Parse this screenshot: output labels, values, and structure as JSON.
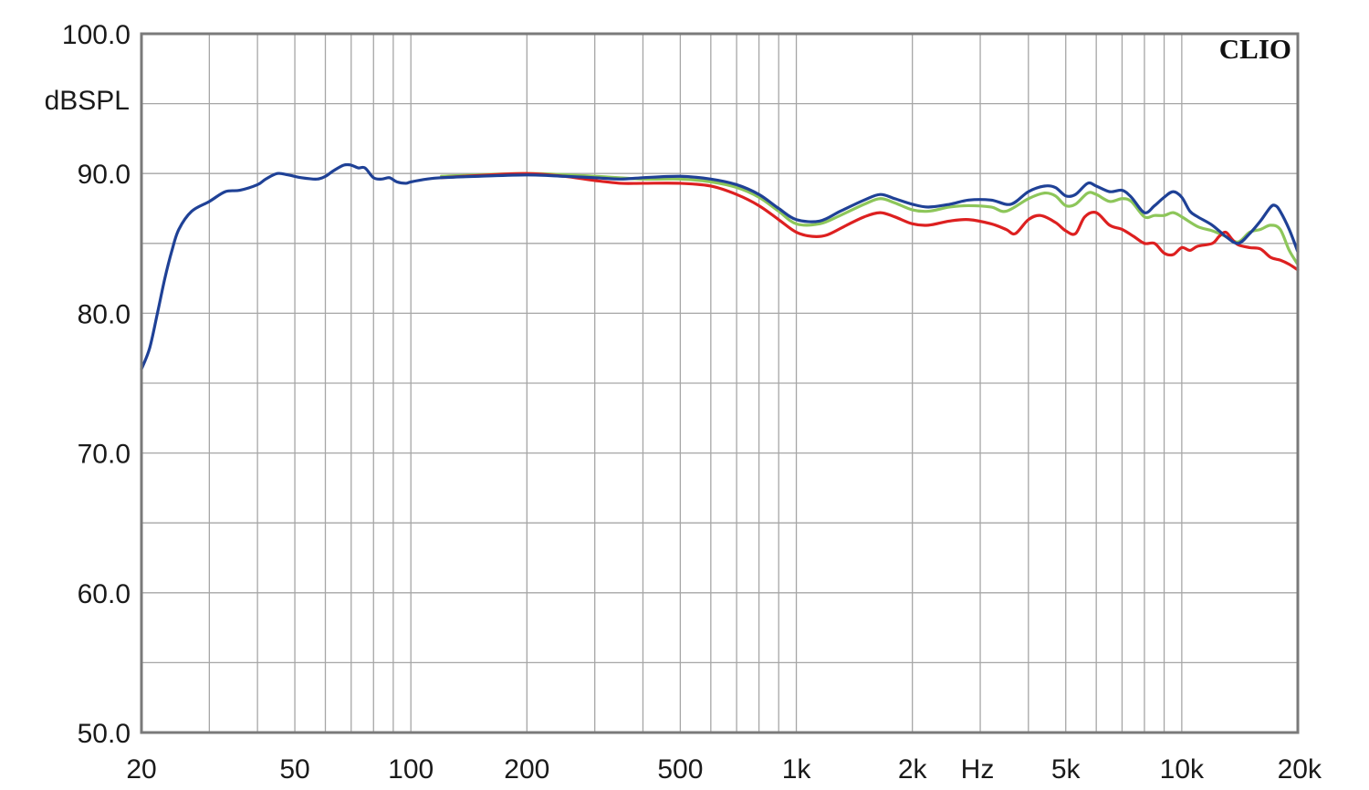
{
  "chart_data": {
    "type": "line",
    "brand": "CLIO",
    "ylabel": "dBSPL",
    "xunit": "Hz",
    "xscale": "log",
    "xlim": [
      20,
      20000
    ],
    "ylim": [
      50,
      100
    ],
    "grid": true,
    "x_ticks": [
      {
        "value": 20,
        "label": "20"
      },
      {
        "value": 50,
        "label": "50"
      },
      {
        "value": 100,
        "label": "100"
      },
      {
        "value": 200,
        "label": "200"
      },
      {
        "value": 500,
        "label": "500"
      },
      {
        "value": 1000,
        "label": "1k"
      },
      {
        "value": 2000,
        "label": "2k"
      },
      {
        "value": 5000,
        "label": "5k"
      },
      {
        "value": 10000,
        "label": "10k"
      },
      {
        "value": 20000,
        "label": "20k"
      }
    ],
    "y_ticks": [
      {
        "value": 100,
        "label": "100.0"
      },
      {
        "value": 90,
        "label": "90.0"
      },
      {
        "value": 80,
        "label": "80.0"
      },
      {
        "value": 70,
        "label": "70.0"
      },
      {
        "value": 60,
        "label": "60.0"
      },
      {
        "value": 50,
        "label": "50.0"
      }
    ],
    "series": [
      {
        "color": "#2a9b1c",
        "stroke": "#8dc65a",
        "points": [
          [
            120,
            89.8
          ],
          [
            200,
            90.0
          ],
          [
            300,
            89.8
          ],
          [
            400,
            89.6
          ],
          [
            500,
            89.6
          ],
          [
            600,
            89.4
          ],
          [
            700,
            89.0
          ],
          [
            800,
            88.3
          ],
          [
            900,
            87.3
          ],
          [
            1000,
            86.4
          ],
          [
            1150,
            86.4
          ],
          [
            1300,
            87.0
          ],
          [
            1500,
            87.8
          ],
          [
            1650,
            88.2
          ],
          [
            1800,
            87.9
          ],
          [
            2000,
            87.4
          ],
          [
            2200,
            87.3
          ],
          [
            2500,
            87.6
          ],
          [
            2800,
            87.7
          ],
          [
            3200,
            87.6
          ],
          [
            3500,
            87.3
          ],
          [
            4000,
            88.2
          ],
          [
            4400,
            88.6
          ],
          [
            4700,
            88.4
          ],
          [
            5000,
            87.7
          ],
          [
            5300,
            87.8
          ],
          [
            5700,
            88.6
          ],
          [
            6000,
            88.5
          ],
          [
            6500,
            88.0
          ],
          [
            7000,
            88.2
          ],
          [
            7400,
            88.0
          ],
          [
            8000,
            86.9
          ],
          [
            8500,
            87.0
          ],
          [
            9000,
            87.0
          ],
          [
            9500,
            87.2
          ],
          [
            10000,
            86.9
          ],
          [
            11000,
            86.2
          ],
          [
            12000,
            85.9
          ],
          [
            13000,
            85.5
          ],
          [
            14000,
            85.1
          ],
          [
            15000,
            85.8
          ],
          [
            16000,
            86.0
          ],
          [
            17000,
            86.3
          ],
          [
            18000,
            86.0
          ],
          [
            19000,
            84.5
          ],
          [
            20000,
            83.5
          ]
        ]
      },
      {
        "color": "#dd2020",
        "stroke": "#dd2020",
        "points": [
          [
            120,
            89.7
          ],
          [
            160,
            89.9
          ],
          [
            200,
            90.0
          ],
          [
            250,
            89.8
          ],
          [
            300,
            89.5
          ],
          [
            350,
            89.3
          ],
          [
            400,
            89.3
          ],
          [
            500,
            89.3
          ],
          [
            600,
            89.1
          ],
          [
            700,
            88.5
          ],
          [
            800,
            87.7
          ],
          [
            900,
            86.7
          ],
          [
            1000,
            85.8
          ],
          [
            1100,
            85.5
          ],
          [
            1200,
            85.6
          ],
          [
            1350,
            86.3
          ],
          [
            1500,
            86.9
          ],
          [
            1650,
            87.2
          ],
          [
            1800,
            86.9
          ],
          [
            2000,
            86.4
          ],
          [
            2200,
            86.3
          ],
          [
            2500,
            86.6
          ],
          [
            2800,
            86.7
          ],
          [
            3200,
            86.4
          ],
          [
            3500,
            86.0
          ],
          [
            3700,
            85.7
          ],
          [
            4000,
            86.7
          ],
          [
            4300,
            87.0
          ],
          [
            4700,
            86.5
          ],
          [
            5000,
            85.9
          ],
          [
            5300,
            85.7
          ],
          [
            5600,
            86.9
          ],
          [
            6000,
            87.2
          ],
          [
            6500,
            86.3
          ],
          [
            7000,
            86.0
          ],
          [
            7500,
            85.5
          ],
          [
            8000,
            85.0
          ],
          [
            8500,
            85.0
          ],
          [
            9000,
            84.3
          ],
          [
            9500,
            84.2
          ],
          [
            10000,
            84.7
          ],
          [
            10500,
            84.5
          ],
          [
            11000,
            84.8
          ],
          [
            12000,
            85.0
          ],
          [
            12500,
            85.5
          ],
          [
            13000,
            85.8
          ],
          [
            13500,
            85.3
          ],
          [
            14000,
            84.9
          ],
          [
            15000,
            84.7
          ],
          [
            16000,
            84.6
          ],
          [
            17000,
            84.0
          ],
          [
            18000,
            83.8
          ],
          [
            19000,
            83.5
          ],
          [
            20000,
            83.1
          ]
        ]
      },
      {
        "color": "#1a3d9a",
        "stroke": "#1f4196",
        "points": [
          [
            20,
            76.0
          ],
          [
            21,
            77.5
          ],
          [
            22,
            80.0
          ],
          [
            23,
            82.5
          ],
          [
            24,
            84.5
          ],
          [
            25,
            86.0
          ],
          [
            27,
            87.3
          ],
          [
            30,
            88.0
          ],
          [
            33,
            88.7
          ],
          [
            36,
            88.8
          ],
          [
            40,
            89.2
          ],
          [
            42,
            89.6
          ],
          [
            45,
            90.0
          ],
          [
            48,
            89.9
          ],
          [
            52,
            89.7
          ],
          [
            57,
            89.6
          ],
          [
            60,
            89.8
          ],
          [
            63,
            90.2
          ],
          [
            67,
            90.6
          ],
          [
            70,
            90.6
          ],
          [
            73,
            90.4
          ],
          [
            76,
            90.4
          ],
          [
            80,
            89.7
          ],
          [
            84,
            89.6
          ],
          [
            88,
            89.7
          ],
          [
            92,
            89.4
          ],
          [
            97,
            89.3
          ],
          [
            100,
            89.4
          ],
          [
            110,
            89.6
          ],
          [
            120,
            89.7
          ],
          [
            150,
            89.8
          ],
          [
            200,
            89.9
          ],
          [
            250,
            89.8
          ],
          [
            300,
            89.7
          ],
          [
            350,
            89.6
          ],
          [
            400,
            89.7
          ],
          [
            500,
            89.8
          ],
          [
            600,
            89.6
          ],
          [
            700,
            89.2
          ],
          [
            800,
            88.5
          ],
          [
            900,
            87.5
          ],
          [
            1000,
            86.7
          ],
          [
            1150,
            86.6
          ],
          [
            1300,
            87.3
          ],
          [
            1500,
            88.1
          ],
          [
            1650,
            88.5
          ],
          [
            1800,
            88.2
          ],
          [
            2000,
            87.8
          ],
          [
            2200,
            87.6
          ],
          [
            2500,
            87.8
          ],
          [
            2800,
            88.1
          ],
          [
            3200,
            88.1
          ],
          [
            3600,
            87.8
          ],
          [
            4000,
            88.7
          ],
          [
            4400,
            89.1
          ],
          [
            4700,
            89.0
          ],
          [
            5000,
            88.4
          ],
          [
            5300,
            88.5
          ],
          [
            5700,
            89.3
          ],
          [
            6000,
            89.1
          ],
          [
            6500,
            88.7
          ],
          [
            7000,
            88.8
          ],
          [
            7400,
            88.3
          ],
          [
            8000,
            87.2
          ],
          [
            8500,
            87.7
          ],
          [
            9000,
            88.3
          ],
          [
            9500,
            88.7
          ],
          [
            10000,
            88.3
          ],
          [
            10500,
            87.3
          ],
          [
            11000,
            86.9
          ],
          [
            12000,
            86.3
          ],
          [
            13000,
            85.5
          ],
          [
            14000,
            85.0
          ],
          [
            15000,
            85.7
          ],
          [
            16000,
            86.6
          ],
          [
            17000,
            87.6
          ],
          [
            17500,
            87.7
          ],
          [
            18000,
            87.3
          ],
          [
            19000,
            86.0
          ],
          [
            20000,
            84.4
          ]
        ]
      }
    ]
  }
}
